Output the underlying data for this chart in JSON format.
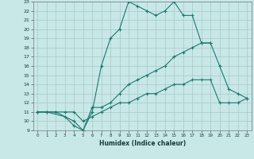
{
  "xlabel": "Humidex (Indice chaleur)",
  "xlim": [
    -0.5,
    23.5
  ],
  "ylim": [
    9,
    23
  ],
  "xticks": [
    0,
    1,
    2,
    3,
    4,
    5,
    6,
    7,
    8,
    9,
    10,
    11,
    12,
    13,
    14,
    15,
    16,
    17,
    18,
    19,
    20,
    21,
    22,
    23
  ],
  "yticks": [
    9,
    10,
    11,
    12,
    13,
    14,
    15,
    16,
    17,
    18,
    19,
    20,
    21,
    22,
    23
  ],
  "line_color": "#1a7a6e",
  "bg_color": "#c8e8e8",
  "grid_color": "#a8c8c8",
  "line1_x": [
    0,
    1,
    3,
    4,
    5,
    6,
    7,
    8,
    9,
    10,
    11,
    12,
    13,
    14,
    15,
    16,
    17,
    18,
    19
  ],
  "line1_y": [
    11,
    11,
    10.5,
    9.5,
    9,
    11,
    16,
    19,
    20,
    23,
    22.5,
    22,
    21.5,
    22,
    23,
    21.5,
    21.5,
    18.5,
    18.5
  ],
  "line2_x": [
    0,
    2,
    4,
    5,
    6,
    7,
    8,
    9,
    10,
    11,
    12,
    13,
    14,
    15,
    16,
    17,
    18,
    19,
    20,
    21,
    22,
    23
  ],
  "line2_y": [
    11,
    11,
    10,
    9,
    11.5,
    11.5,
    12,
    13,
    14,
    14.5,
    15,
    15.5,
    16,
    17,
    17.5,
    18,
    18.5,
    18.5,
    16,
    13.5,
    13,
    12.5
  ],
  "line3_x": [
    0,
    1,
    2,
    3,
    4,
    5,
    6,
    7,
    8,
    9,
    10,
    11,
    12,
    13,
    14,
    15,
    16,
    17,
    18,
    19,
    20,
    21,
    22,
    23
  ],
  "line3_y": [
    11,
    11,
    11,
    11,
    11,
    10,
    10.5,
    11,
    11.5,
    12,
    12,
    12.5,
    13,
    13,
    13.5,
    14,
    14,
    14.5,
    14.5,
    14.5,
    12,
    12,
    12,
    12.5
  ]
}
